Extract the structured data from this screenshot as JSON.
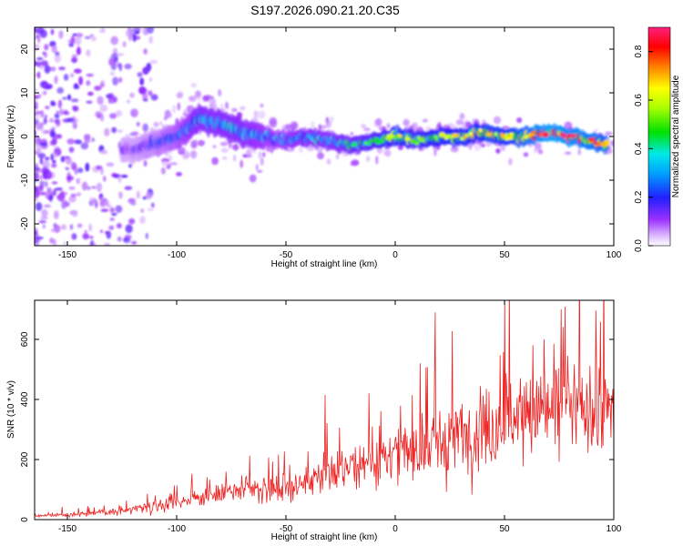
{
  "title": "S197.2026.090.21.20.C35",
  "chart_data": [
    {
      "type": "heatmap",
      "xlabel": "Height of straight line (km)",
      "ylabel": "Frequency (Hz)",
      "xlim": [
        -165,
        100
      ],
      "ylim": [
        -25,
        25
      ],
      "xticks": [
        "-150",
        "-100",
        "-50",
        "0",
        "50",
        "100"
      ],
      "xtick_values": [
        -150,
        -100,
        -50,
        0,
        50,
        100
      ],
      "yticks": [
        "-20",
        "-10",
        "0",
        "10",
        "20"
      ],
      "ytick_values": [
        -20,
        -10,
        0,
        10,
        20
      ],
      "colorbar": {
        "label": "Normalized spectral amplitude",
        "range": [
          0,
          0.9
        ],
        "ticks": [
          "0.0",
          "0.2",
          "0.4",
          "0.6",
          "0.8"
        ],
        "tick_values": [
          0.0,
          0.2,
          0.4,
          0.6,
          0.8
        ]
      },
      "ridge": {
        "description_x": [
          -120,
          -100,
          -90,
          -80,
          -70,
          -60,
          -50,
          -40,
          -30,
          -20,
          -10,
          0,
          10,
          20,
          30,
          40,
          50,
          60,
          70,
          80,
          90,
          97
        ],
        "frequency": [
          -3,
          0,
          4,
          3,
          1,
          0,
          -1,
          0,
          -1,
          -2,
          -1,
          0,
          -1,
          0,
          0,
          1,
          0,
          0,
          1,
          0,
          -1,
          -2
        ],
        "amplitude": [
          0.15,
          0.25,
          0.35,
          0.35,
          0.35,
          0.3,
          0.3,
          0.35,
          0.35,
          0.4,
          0.45,
          0.55,
          0.5,
          0.55,
          0.55,
          0.6,
          0.6,
          0.7,
          0.85,
          0.8,
          0.75,
          0.7
        ]
      }
    },
    {
      "type": "line",
      "xlabel": "Height of straight line (km)",
      "ylabel": "SNR (10 * v/v)",
      "xlim": [
        -165,
        100
      ],
      "ylim": [
        0,
        730
      ],
      "xticks": [
        "-150",
        "-100",
        "-50",
        "0",
        "50",
        "100"
      ],
      "xtick_values": [
        -150,
        -100,
        -50,
        0,
        50,
        100
      ],
      "yticks": [
        "0",
        "200",
        "400",
        "600"
      ],
      "ytick_values": [
        0,
        200,
        400,
        600
      ],
      "series": [
        {
          "name": "SNR",
          "color": "#ee2222",
          "envelope_x": [
            -165,
            -150,
            -130,
            -110,
            -90,
            -70,
            -50,
            -35,
            -30,
            -20,
            -10,
            0,
            10,
            20,
            30,
            40,
            50,
            60,
            70,
            80,
            90,
            100
          ],
          "mean": [
            12,
            18,
            25,
            45,
            75,
            95,
            105,
            130,
            160,
            180,
            190,
            210,
            235,
            265,
            285,
            300,
            340,
            355,
            360,
            365,
            355,
            360
          ],
          "peaks": [
            {
              "x": -32,
              "y": 415
            },
            {
              "x": -12,
              "y": 420
            },
            {
              "x": 18,
              "y": 490
            },
            {
              "x": 50,
              "y": 730
            },
            {
              "x": 63,
              "y": 580
            },
            {
              "x": 68,
              "y": 600
            }
          ]
        }
      ]
    }
  ]
}
